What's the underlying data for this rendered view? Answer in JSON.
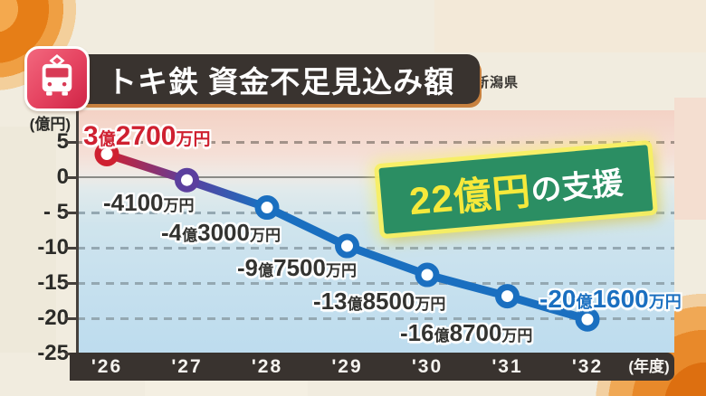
{
  "header": {
    "title": "トキ鉄 資金不足見込み額",
    "source": "出典:新潟県"
  },
  "annotation": {
    "highlight": "22億円",
    "suffix": "の支援"
  },
  "chart_data": {
    "type": "line",
    "title": "トキ鉄 資金不足見込み額",
    "categories": [
      "'26",
      "'27",
      "'28",
      "'29",
      "'30",
      "'31",
      "'32"
    ],
    "values_oku_yen": [
      3.27,
      -0.41,
      -4.3,
      -9.75,
      -13.85,
      -16.87,
      -20.16
    ],
    "point_labels": [
      "3億2700万円",
      "-4100万円",
      "-4億3000万円",
      "-9億7500万円",
      "-13億8500万円",
      "-16億8700万円",
      "-20億1600万円"
    ],
    "point_label_colors": [
      "#cf2030",
      "#333330",
      "#333330",
      "#333330",
      "#333330",
      "#333330",
      "#1a6fc0"
    ],
    "y_tick_labels": [
      "5",
      "0",
      "- 5",
      "-10",
      "-15",
      "-20",
      "-25"
    ],
    "y_tick_values": [
      5,
      0,
      -5,
      -10,
      -15,
      -20,
      -25
    ],
    "ylim": [
      -25,
      5
    ],
    "y_axis_unit": "(億円)",
    "x_axis_unit": "(年度)",
    "grid": "horizontal dashed lines, solid zero line",
    "legend": "none",
    "line_gradient_colors": [
      "#cf2030",
      "#5b3f9e",
      "#1a6fc0"
    ],
    "marker_colors": [
      "#cf2030",
      "#5b3f9e",
      "#1a6fc0",
      "#1a6fc0",
      "#1a6fc0",
      "#1a6fc0",
      "#1a6fc0"
    ],
    "annotation_text": "22億円の支援"
  }
}
